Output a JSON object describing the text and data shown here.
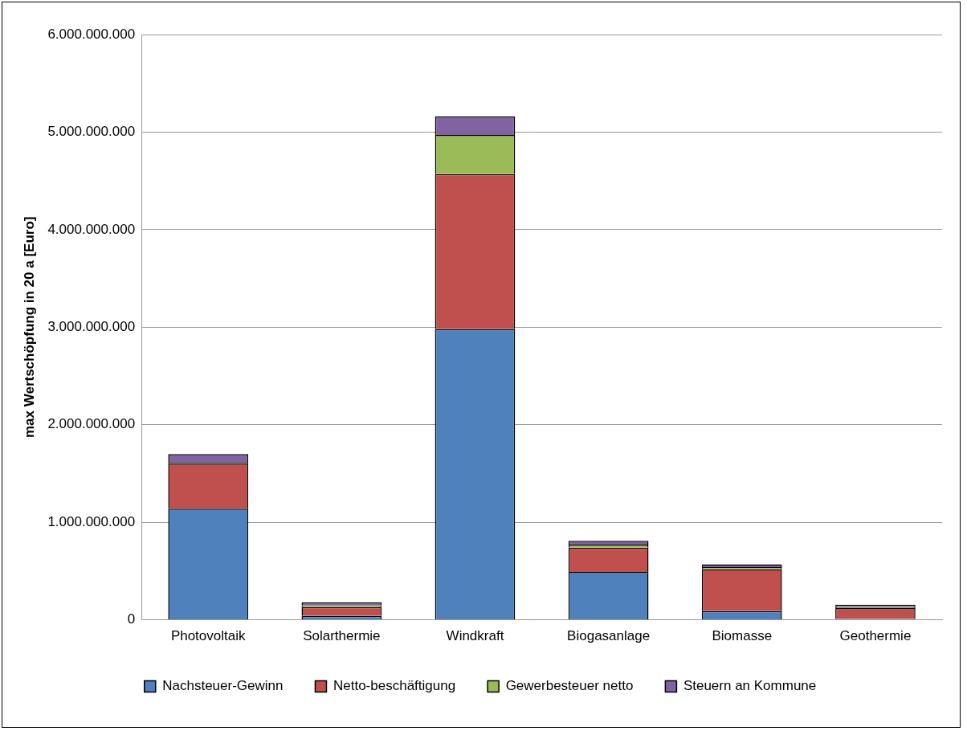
{
  "chart_data": {
    "type": "bar",
    "stacked": true,
    "ylabel": "max Wertschöpfung in 20 a [Euro]",
    "categories": [
      "Photovoltaik",
      "Solarthermie",
      "Windkraft",
      "Biogasanlage",
      "Biomasse",
      "Geothermie"
    ],
    "series": [
      {
        "name": "Nachsteuer-Gewinn",
        "color": "#4f81bd",
        "values": [
          1140000000,
          40000000,
          2980000000,
          490000000,
          90000000,
          10000000
        ]
      },
      {
        "name": "Netto-beschäftigung",
        "color": "#c0504d",
        "values": [
          460000000,
          90000000,
          1590000000,
          250000000,
          430000000,
          110000000
        ]
      },
      {
        "name": "Gewerbesteuer netto",
        "color": "#9bbb59",
        "values": [
          10000000,
          20000000,
          400000000,
          30000000,
          20000000,
          10000000
        ]
      },
      {
        "name": "Steuern an Kommune",
        "color": "#8064a2",
        "values": [
          90000000,
          30000000,
          190000000,
          40000000,
          30000000,
          25000000
        ]
      }
    ],
    "ylim": [
      0,
      6000000000
    ],
    "yticks": [
      {
        "value": 0,
        "label": "0"
      },
      {
        "value": 1000000000,
        "label": "1.000.000.000"
      },
      {
        "value": 2000000000,
        "label": "2.000.000.000"
      },
      {
        "value": 3000000000,
        "label": "3.000.000.000"
      },
      {
        "value": 4000000000,
        "label": "4.000.000.000"
      },
      {
        "value": 5000000000,
        "label": "5.000.000.000"
      },
      {
        "value": 6000000000,
        "label": "6.000.000.000"
      }
    ],
    "grid": "y",
    "legend": "bottom"
  }
}
